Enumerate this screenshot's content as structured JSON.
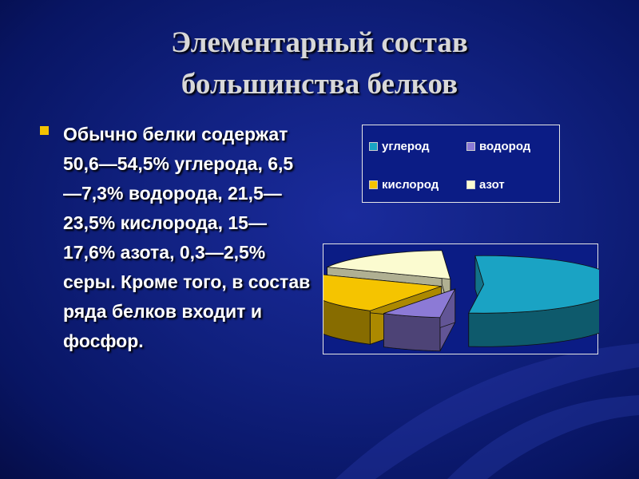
{
  "title": {
    "line1": "Элементарный состав",
    "line2": "большинства белков"
  },
  "bullet": {
    "text": "Обычно белки содержат 50,6—54,5% углерода, 6,5—7,3% водорода, 21,5—23,5% кислорода, 15—17,6% азота, 0,3—2,5% серы. Кроме того, в состав ряда белков входит и фосфор."
  },
  "chart_data": {
    "type": "pie",
    "title": "",
    "style": "3d-exploded",
    "legend_position": "separate-box-above",
    "series": [
      {
        "name": "углерод",
        "value": 52.5,
        "color": "#1aa3c4"
      },
      {
        "name": "водород",
        "value": 7,
        "color": "#8c7ad6"
      },
      {
        "name": "кислород",
        "value": 23,
        "color": "#f5c400"
      },
      {
        "name": "азот",
        "value": 17,
        "color": "#fbfbd0"
      }
    ]
  }
}
